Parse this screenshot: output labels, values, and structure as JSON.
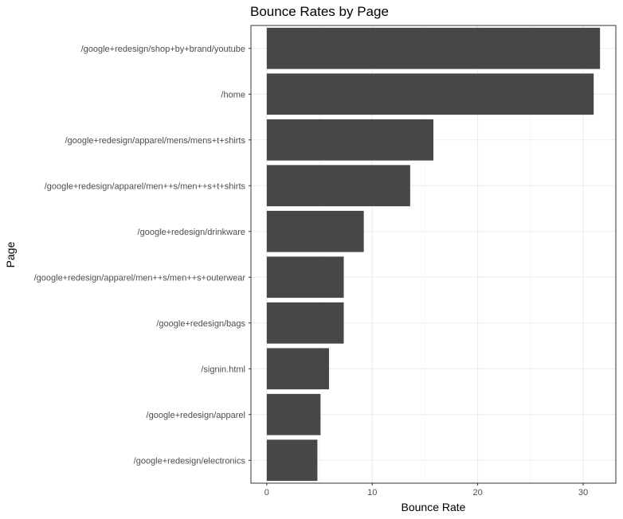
{
  "chart_data": {
    "type": "bar",
    "orientation": "horizontal",
    "title": "Bounce Rates by Page",
    "xlabel": "Bounce Rate",
    "ylabel": "Page",
    "categories": [
      "/google+redesign/shop+by+brand/youtube",
      "/home",
      "/google+redesign/apparel/mens/mens+t+shirts",
      "/google+redesign/apparel/men++s/men++s+t+shirts",
      "/google+redesign/drinkware",
      "/google+redesign/apparel/men++s/men++s+outerwear",
      "/google+redesign/bags",
      "/signin.html",
      "/google+redesign/apparel",
      "/google+redesign/electronics"
    ],
    "values": [
      31.6,
      31.0,
      15.8,
      13.6,
      9.2,
      7.3,
      7.3,
      5.9,
      5.1,
      4.8
    ],
    "xlim": [
      -1.5,
      33.1
    ],
    "xticks": [
      0,
      10,
      20,
      30
    ],
    "grid": true,
    "bar_color": "#474747"
  }
}
